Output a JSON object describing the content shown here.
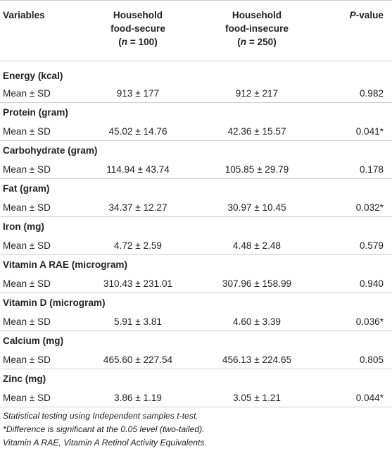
{
  "header": {
    "variables": "Variables",
    "secure_line1": "Household",
    "secure_line2": "food-secure",
    "secure_n_var": "n",
    "secure_n_rest": " = 100)",
    "insecure_line1": "Household",
    "insecure_line2": "food-insecure",
    "insecure_n_var": "n",
    "insecure_n_rest": " = 250)",
    "p_var": "P",
    "p_rest": "-value"
  },
  "sections": [
    {
      "title": "Energy (kcal)",
      "label": "Mean ± SD",
      "secure": "913 ± 177",
      "insecure": "912 ± 217",
      "p": "0.982"
    },
    {
      "title": "Protein (gram)",
      "label": "Mean ± SD",
      "secure": "45.02 ± 14.76",
      "insecure": "42.36 ± 15.57",
      "p": "0.041*"
    },
    {
      "title": "Carbohydrate (gram)",
      "label": "Mean ± SD",
      "secure": "114.94 ± 43.74",
      "insecure": "105.85 ± 29.79",
      "p": "0.178"
    },
    {
      "title": "Fat (gram)",
      "label": "Mean ± SD",
      "secure": "34.37 ± 12.27",
      "insecure": "30.97 ± 10.45",
      "p": "0.032*"
    },
    {
      "title": "Iron (mg)",
      "label": "Mean ± SD",
      "secure": "4.72 ± 2.59",
      "insecure": "4.48 ± 2.48",
      "p": "0.579"
    },
    {
      "title": "Vitamin A RAE (microgram)",
      "label": "Mean ± SD",
      "secure": "310.43 ± 231.01",
      "insecure": "307.96 ± 158.99",
      "p": "0.940"
    },
    {
      "title": "Vitamin D (microgram)",
      "label": "Mean ± SD",
      "secure": "5.91 ± 3.81",
      "insecure": "4.60 ± 3.39",
      "p": "0.036*"
    },
    {
      "title": "Calcium (mg)",
      "label": "Mean ± SD",
      "secure": "465.60 ± 227.54",
      "insecure": "456.13 ± 224.65",
      "p": "0.805"
    },
    {
      "title": "Zinc (mg)",
      "label": "Mean ± SD",
      "secure": "3.86 ± 1.19",
      "insecure": "3.05 ± 1.21",
      "p": "0.044*"
    }
  ],
  "notes": [
    "Statistical testing using Independent samples t-test.",
    "*Difference is significant at the 0.05 level (two-tailed).",
    "Vitamin A RAE, Vitamin A Retinol Activity Equivalents."
  ]
}
